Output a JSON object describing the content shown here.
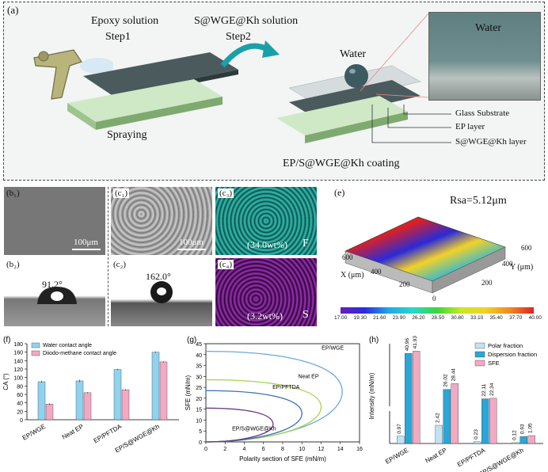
{
  "panel_a": {
    "label": "(a)",
    "step1_title": "Epoxy solution",
    "step1_sub": "Step1",
    "step2_title": "S@WGE@Kh solution",
    "step2_sub": "Step2",
    "spraying": "Spraying",
    "water_drop": "Water",
    "zoom_water": "Water",
    "coating": "EP/S@WGE@Kh coating",
    "layers": [
      "Glass Substrate",
      "EP layer",
      "S@WGE@Kh layer"
    ]
  },
  "panel_b": {
    "b1": "(b₁)",
    "b2": "(b₂)",
    "scale": "100μm",
    "angle": "91.2°"
  },
  "panel_c": {
    "c1": "(c₁)",
    "c2": "(c₂)",
    "c3": "(c₃)",
    "c4": "(c₄)",
    "scale": "100μm",
    "angle": "162.0°",
    "f_value": "(34.0wt%)",
    "f_elem": "F",
    "s_value": "(3.2wt%)",
    "s_elem": "S"
  },
  "panel_e": {
    "label": "(e)",
    "rsa": "Rsa=5.12μm",
    "x_axis": "X (μm)",
    "y_axis": "Y (μm)",
    "x_ticks": [
      "0",
      "200",
      "400",
      "600"
    ],
    "y_ticks": [
      "200",
      "400",
      "600"
    ],
    "colorbar": [
      "17.00",
      "19.30",
      "21.60",
      "23.90",
      "26.20",
      "28.50",
      "30.80",
      "33.10",
      "35.40",
      "37.70",
      "40.00"
    ]
  },
  "chart_data": [
    {
      "id": "f",
      "type": "bar",
      "panel_label": "(f)",
      "categories": [
        "EP/WGE",
        "Neat EP",
        "EP/PFTDA",
        "EP/S@WGE@Kh"
      ],
      "series": [
        {
          "name": "Water contact angle",
          "values": [
            90,
            92,
            119,
            160
          ],
          "errors": [
            2,
            3,
            1.5,
            1.5
          ],
          "color": "#8fd3ee"
        },
        {
          "name": "Diiodo-methane contact angle",
          "values": [
            37,
            64,
            71,
            137
          ],
          "errors": [
            2,
            1.5,
            1.5,
            1.5
          ],
          "color": "#f2a9c2"
        }
      ],
      "ylabel": "CA (°)",
      "ylim": [
        0,
        180
      ],
      "yticks": [
        0,
        20,
        40,
        60,
        80,
        100,
        120,
        140,
        160,
        180
      ],
      "legend": "top-left"
    },
    {
      "id": "g",
      "type": "line",
      "panel_label": "(g)",
      "xlabel": "Polarity section of SFE (mN/m)",
      "ylabel": "SFE (mN/m)",
      "xlim": [
        0,
        16
      ],
      "ylim": [
        0,
        45
      ],
      "xticks": [
        0,
        2,
        4,
        6,
        8,
        10,
        12,
        14,
        16
      ],
      "yticks": [
        0,
        5,
        10,
        15,
        20,
        25,
        30,
        35,
        40,
        45
      ],
      "curves": [
        {
          "label": "EP/WGE",
          "tip": [
            14.2,
            23
          ],
          "top": 41.5,
          "color": "#6aaad8"
        },
        {
          "label": "Neat EP",
          "tip": [
            12.0,
            16
          ],
          "top": 28.5,
          "color": "#a6d44a"
        },
        {
          "label": "EP/PFTDA",
          "tip": [
            10.0,
            13
          ],
          "top": 23.5,
          "color": "#3a6fb5"
        },
        {
          "label": "EP/S@WGE@Kh",
          "tip": [
            7.0,
            8
          ],
          "top": 15.5,
          "color": "#6a3a8a"
        }
      ]
    },
    {
      "id": "h",
      "type": "bar",
      "panel_label": "(h)",
      "categories": [
        "EP/WGE",
        "Neat EP",
        "EP/PFTDA",
        "EP/S@WGE@Kh"
      ],
      "series": [
        {
          "name": "Polar fraction",
          "values": [
            0.97,
            2.42,
            0.23,
            0.12
          ],
          "labels": [
            "0.97",
            "2.42",
            "0.23",
            "0.12"
          ],
          "color": "#bfe3f2"
        },
        {
          "name": "Dispersion fraction",
          "values": [
            40.96,
            26.02,
            22.11,
            0.93
          ],
          "labels": [
            "40.96",
            "26.02",
            "22.11",
            "0.93"
          ],
          "color": "#2aa6d8"
        },
        {
          "name": "SFE",
          "values": [
            41.93,
            28.44,
            22.34,
            1.05
          ],
          "labels": [
            "41.93",
            "28.44",
            "22.34",
            "1.05"
          ],
          "color": "#f2a9c2"
        }
      ],
      "ylabel": "Intensity (mN/m)",
      "legend": "top-right"
    }
  ]
}
